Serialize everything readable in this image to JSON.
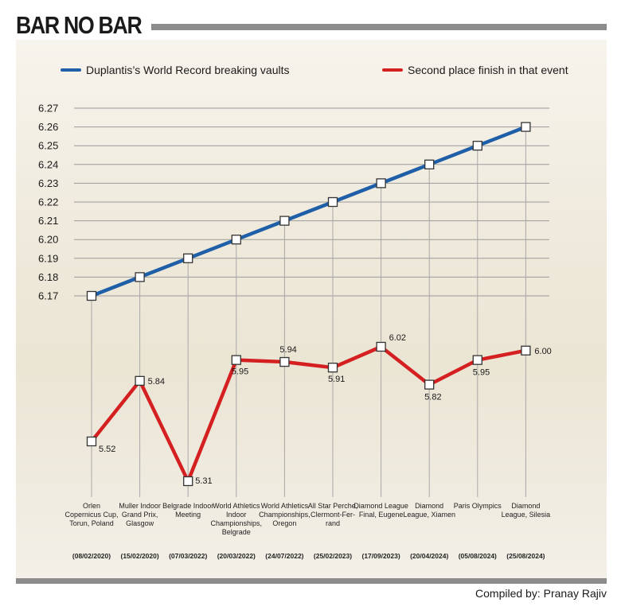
{
  "header": {
    "title": "BAR NO BAR"
  },
  "footer": {
    "credit": "Compiled by: Pranay Rajiv"
  },
  "chart_data": {
    "type": "line",
    "grid": true,
    "legend": "top",
    "ylim": [
      6.17,
      6.27
    ],
    "yticks": [
      "6.27",
      "6.26",
      "6.25",
      "6.24",
      "6.23",
      "6.22",
      "6.21",
      "6.20",
      "6.19",
      "6.18",
      "6.17"
    ],
    "categories": [
      [
        "Orlen",
        "Copernicus Cup,",
        "Torun, Poland"
      ],
      [
        "Muller Indoor",
        "Grand Prix,",
        "Glasgow"
      ],
      [
        "Belgrade Indoor",
        "Meeting"
      ],
      [
        "World Athletics",
        "Indoor",
        "Championships,",
        "Belgrade"
      ],
      [
        "World Athletics",
        "Championships,",
        "Oregon"
      ],
      [
        "All Star Perche,",
        "Clermont-Fer-",
        "rand"
      ],
      [
        "Diamond League",
        "Final, Eugene"
      ],
      [
        "Diamond",
        "League,  Xiamen"
      ],
      [
        "Paris Olympics"
      ],
      [
        "Diamond",
        "League, Silesia"
      ]
    ],
    "dates": [
      "(08/02/2020)",
      "(15/02/2020)",
      "(07/03/2022)",
      "(20/03/2022)",
      "(24/07/2022)",
      "(25/02/2023)",
      "(17/09/2023)",
      "(20/04/2024)",
      "(05/08/2024)",
      "(25/08/2024)"
    ],
    "series": [
      {
        "name": "Duplantis’s  World Record breaking vaults",
        "color": "#1f5fa8",
        "values": [
          6.17,
          6.18,
          6.19,
          6.2,
          6.21,
          6.22,
          6.23,
          6.24,
          6.25,
          6.26
        ]
      },
      {
        "name": "Second place finish in that event",
        "color": "#d42020",
        "values": [
          5.52,
          5.84,
          5.31,
          5.95,
          5.94,
          5.91,
          6.02,
          5.82,
          5.95,
          6.0
        ],
        "labels": [
          "5.52",
          "5.84",
          "5.31",
          "5.95",
          "5.94",
          "5.91",
          "6.02",
          "5.82",
          "5.95",
          "6.00"
        ]
      }
    ]
  }
}
